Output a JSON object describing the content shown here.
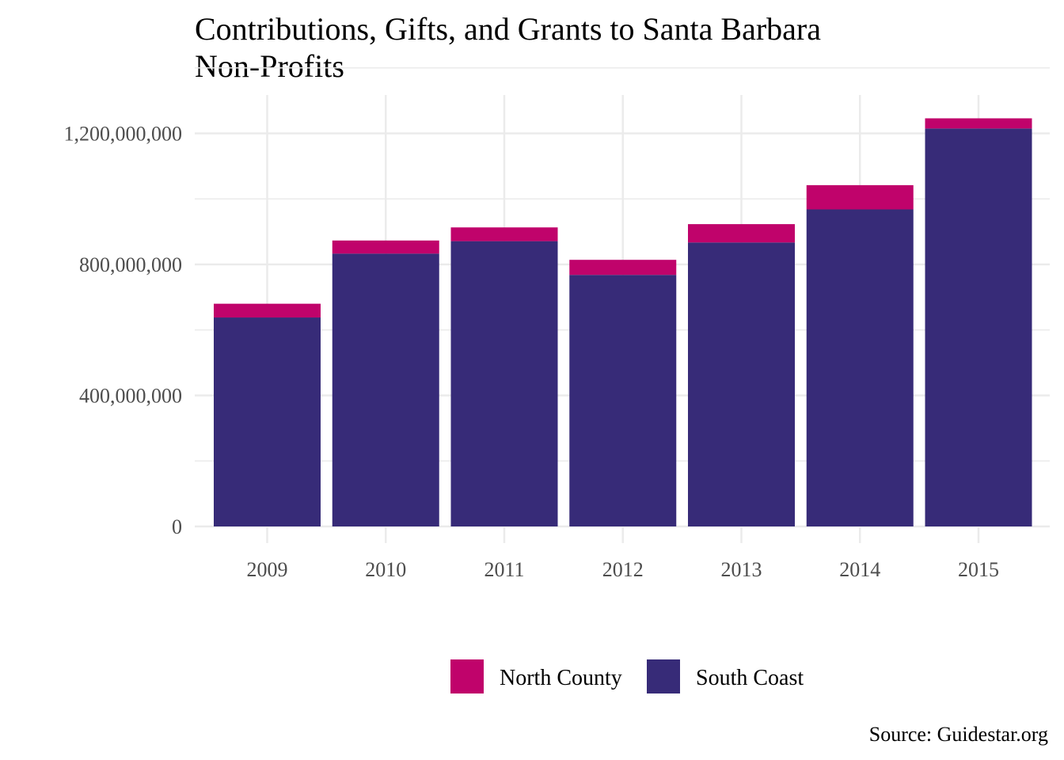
{
  "chart_data": {
    "type": "bar",
    "stacked": true,
    "title_lines": [
      "Contributions, Gifts, and Grants to Santa Barbara",
      "Non-Profits"
    ],
    "caption": "Source: Guidestar.org",
    "xlabel": "",
    "ylabel": "",
    "categories": [
      "2009",
      "2010",
      "2011",
      "2012",
      "2013",
      "2014",
      "2015"
    ],
    "series": [
      {
        "name": "South Coast",
        "color": "#372B78",
        "values": [
          638000000,
          833000000,
          871000000,
          768000000,
          867000000,
          968000000,
          1215000000
        ]
      },
      {
        "name": "North County",
        "color": "#C0036B",
        "values": [
          42000000,
          40000000,
          42000000,
          46000000,
          56000000,
          74000000,
          31000000
        ]
      }
    ],
    "legend_order": [
      "North County",
      "South Coast"
    ],
    "ylim": [
      0,
      1300000000
    ],
    "y_ticks": [
      0,
      400000000,
      800000000,
      1200000000
    ],
    "y_tick_labels": [
      "0",
      "400,000,000",
      "800,000,000",
      "1,200,000,000"
    ],
    "grid": true,
    "legend_position": "bottom"
  }
}
